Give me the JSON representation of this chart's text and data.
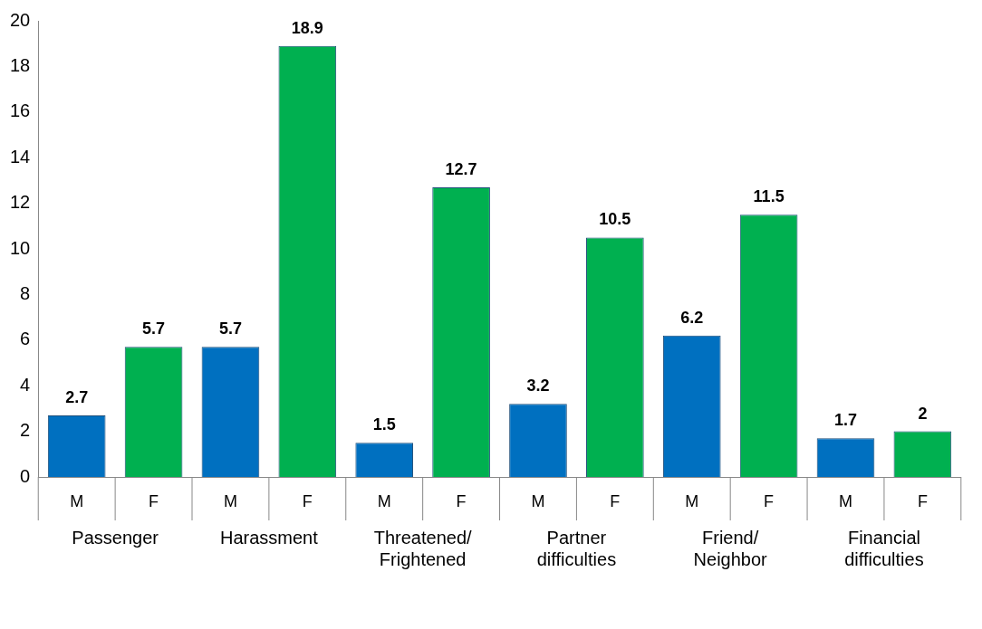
{
  "chart_data": {
    "type": "bar",
    "categories": [
      "Passenger",
      "Harassment",
      "Threatened/ Frightened",
      "Partner difficulties",
      "Friend/ Neighbor",
      "Financial difficulties"
    ],
    "series": [
      {
        "name": "M",
        "color": "#0070c0",
        "values": [
          2.7,
          5.7,
          1.5,
          3.2,
          6.2,
          1.7
        ]
      },
      {
        "name": "F",
        "color": "#00b050",
        "values": [
          5.7,
          18.9,
          12.7,
          10.5,
          11.5,
          2
        ]
      }
    ],
    "ylim": [
      0,
      20
    ],
    "yticks": [
      0,
      2,
      4,
      6,
      8,
      10,
      12,
      14,
      16,
      18,
      20
    ],
    "grid": false,
    "legend": false,
    "data_labels": true
  }
}
